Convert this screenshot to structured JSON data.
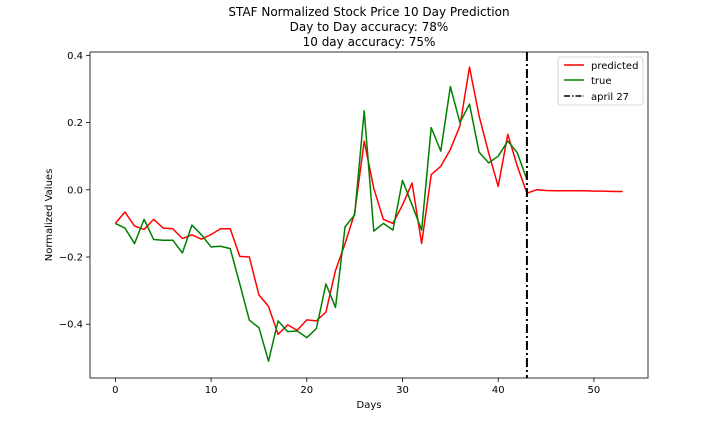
{
  "chart_data": {
    "type": "line",
    "title_lines": [
      "STAF Normalized Stock Price 10 Day Prediction",
      "Day to Day accuracy: 78%",
      "10 day accuracy: 75%"
    ],
    "xlabel": "Days",
    "ylabel": "Normalized Values",
    "xlim": [
      -2.65,
      55.65
    ],
    "ylim": [
      -0.56,
      0.41
    ],
    "x_ticks": [
      0,
      10,
      20,
      30,
      40,
      50
    ],
    "y_ticks": [
      -0.4,
      -0.2,
      0.0,
      0.2,
      0.4
    ],
    "y_tick_labels": [
      "−0.4",
      "−0.2",
      "0.0",
      "0.2",
      "0.4"
    ],
    "grid": false,
    "legend_position": "top-right",
    "series": [
      {
        "name": "predicted",
        "color": "#ff0000",
        "x": [
          0,
          1,
          2,
          3,
          4,
          5,
          6,
          7,
          8,
          9,
          10,
          11,
          12,
          13,
          14,
          15,
          16,
          17,
          18,
          19,
          20,
          21,
          22,
          23,
          24,
          25,
          26,
          27,
          28,
          29,
          30,
          31,
          32,
          33,
          34,
          35,
          36,
          37,
          38,
          39,
          40,
          41,
          42,
          43,
          44,
          45,
          46,
          47,
          48,
          49,
          50,
          51,
          52,
          53
        ],
        "values": [
          -0.1,
          -0.066,
          -0.108,
          -0.118,
          -0.088,
          -0.114,
          -0.116,
          -0.145,
          -0.134,
          -0.147,
          -0.133,
          -0.116,
          -0.116,
          -0.198,
          -0.2,
          -0.313,
          -0.347,
          -0.43,
          -0.402,
          -0.418,
          -0.387,
          -0.39,
          -0.364,
          -0.24,
          -0.16,
          -0.07,
          0.145,
          0.004,
          -0.088,
          -0.1,
          -0.045,
          0.02,
          -0.16,
          0.045,
          0.07,
          0.12,
          0.19,
          0.365,
          0.22,
          0.11,
          0.01,
          0.165,
          0.07,
          -0.01,
          0.0,
          -0.002,
          -0.003,
          -0.003,
          -0.003,
          -0.003,
          -0.004,
          -0.004,
          -0.005,
          -0.005
        ]
      },
      {
        "name": "true",
        "color": "#008000",
        "x": [
          0,
          1,
          2,
          3,
          4,
          5,
          6,
          7,
          8,
          9,
          10,
          11,
          12,
          13,
          14,
          15,
          16,
          17,
          18,
          19,
          20,
          21,
          22,
          23,
          24,
          25,
          26,
          27,
          28,
          29,
          30,
          31,
          32,
          33,
          34,
          35,
          36,
          37,
          38,
          39,
          40,
          41,
          42,
          43
        ],
        "values": [
          -0.1,
          -0.114,
          -0.16,
          -0.088,
          -0.148,
          -0.15,
          -0.15,
          -0.188,
          -0.105,
          -0.134,
          -0.17,
          -0.168,
          -0.175,
          -0.28,
          -0.388,
          -0.41,
          -0.51,
          -0.39,
          -0.422,
          -0.42,
          -0.44,
          -0.413,
          -0.28,
          -0.35,
          -0.11,
          -0.075,
          0.235,
          -0.123,
          -0.1,
          -0.12,
          0.028,
          -0.045,
          -0.12,
          0.185,
          0.115,
          0.307,
          0.2,
          0.255,
          0.112,
          0.08,
          0.1,
          0.145,
          0.11,
          0.03
        ]
      }
    ],
    "vline": {
      "name": "april 27",
      "x": 43,
      "color": "#000000",
      "style": "dashdot"
    }
  }
}
